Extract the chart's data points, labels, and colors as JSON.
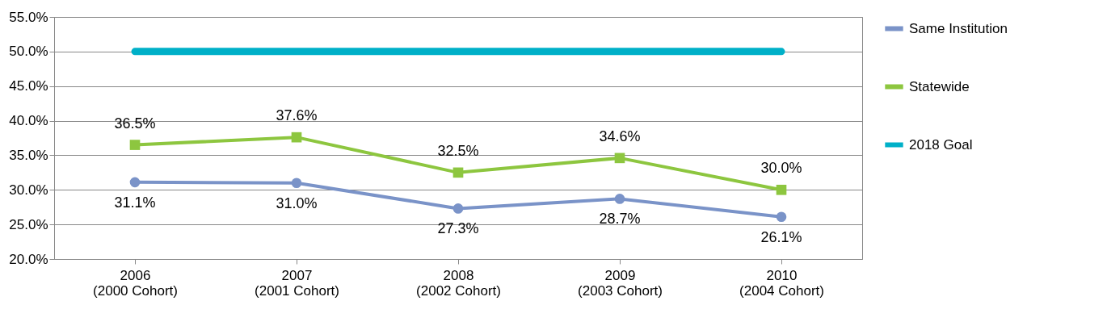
{
  "chart_data": {
    "type": "line",
    "categories": [
      "2006\n(2000 Cohort)",
      "2007\n(2001 Cohort)",
      "2008\n(2002 Cohort)",
      "2009\n(2003 Cohort)",
      "2010\n(2004 Cohort)"
    ],
    "series": [
      {
        "name": "Same Institution",
        "color": "#7a93c8",
        "marker": "circle",
        "values": [
          31.1,
          31.0,
          27.3,
          28.7,
          26.1
        ],
        "value_labels": [
          "31.1%",
          "31.0%",
          "27.3%",
          "28.7%",
          "26.1%"
        ]
      },
      {
        "name": "Statewide",
        "color": "#8dc63f",
        "marker": "square",
        "values": [
          36.5,
          37.6,
          32.5,
          34.6,
          30.0
        ],
        "value_labels": [
          "36.5%",
          "37.6%",
          "32.5%",
          "34.6%",
          "30.0%"
        ]
      },
      {
        "name": "2018 Goal",
        "color": "#00b0c8",
        "marker": "none",
        "values": [
          50,
          50,
          50,
          50,
          50
        ]
      }
    ],
    "ylim": [
      20,
      55
    ],
    "yticks": [
      {
        "value": 20,
        "label": "20.0%"
      },
      {
        "value": 25,
        "label": "25.0%"
      },
      {
        "value": 30,
        "label": "30.0%"
      },
      {
        "value": 35,
        "label": "35.0%"
      },
      {
        "value": 40,
        "label": "40.0%"
      },
      {
        "value": 45,
        "label": "45.0%"
      },
      {
        "value": 50,
        "label": "50.0%"
      },
      {
        "value": 55,
        "label": "55.0%"
      }
    ],
    "grid": "y",
    "legend": "right"
  }
}
